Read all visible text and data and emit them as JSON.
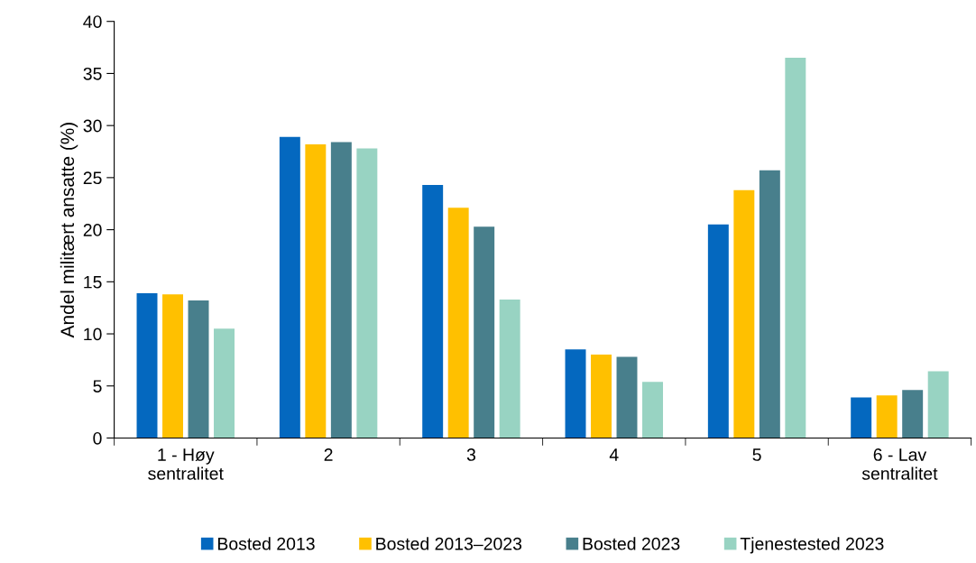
{
  "chart_data": {
    "type": "bar",
    "ylabel": "Andel militært ansatte (%)",
    "categories": [
      "1 - Høy\nsentralitet",
      "2",
      "3",
      "4",
      "5",
      "6 - Lav\nsentralitet"
    ],
    "series": [
      {
        "name": "Bosted 2013",
        "color": "#0468bf",
        "values": [
          13.9,
          28.9,
          24.3,
          8.5,
          20.5,
          3.9
        ]
      },
      {
        "name": "Bosted 2013–2023",
        "color": "#ffc000",
        "values": [
          13.8,
          28.2,
          22.1,
          8.0,
          23.8,
          4.1
        ]
      },
      {
        "name": "Bosted 2023",
        "color": "#487f8c",
        "values": [
          13.2,
          28.4,
          20.3,
          7.8,
          25.7,
          4.6
        ]
      },
      {
        "name": "Tjenestested 2023",
        "color": "#98d3c2",
        "values": [
          10.5,
          27.8,
          13.3,
          5.4,
          36.5,
          6.4
        ]
      }
    ],
    "ylim": [
      0,
      40
    ],
    "yticks": [
      0,
      5,
      10,
      15,
      20,
      25,
      30,
      35,
      40
    ],
    "grid": false,
    "legend": "bottom"
  }
}
